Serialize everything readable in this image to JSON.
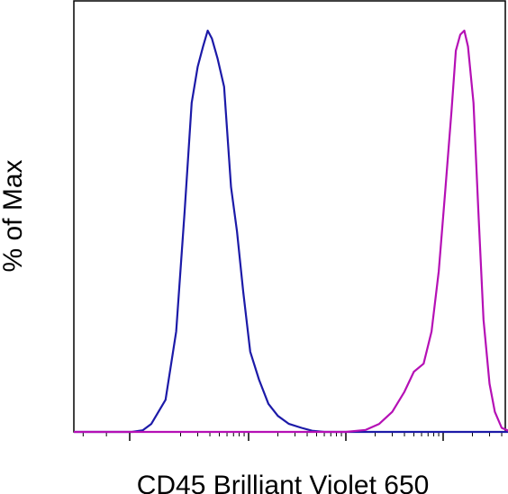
{
  "chart_data": {
    "type": "line",
    "title": "",
    "xlabel": "CD45 Brilliant Violet 650",
    "ylabel": "% of Max",
    "x_scale": "log",
    "x_tick_labels_shown": false,
    "y_tick_labels_shown": false,
    "xlim": [
      -120,
      300000
    ],
    "ylim": [
      0,
      100
    ],
    "grid": false,
    "legend": "none",
    "series": [
      {
        "color": "#1c1aa8",
        "points": [
          [
            -120,
            0
          ],
          [
            1,
            0
          ],
          [
            6,
            0.4
          ],
          [
            10,
            2
          ],
          [
            14,
            8
          ],
          [
            18,
            25
          ],
          [
            22,
            55
          ],
          [
            26,
            82
          ],
          [
            30,
            91
          ],
          [
            34,
            96
          ],
          [
            38,
            100
          ],
          [
            42,
            98
          ],
          [
            48,
            93
          ],
          [
            56,
            86
          ],
          [
            66,
            61
          ],
          [
            76,
            50
          ],
          [
            88,
            35
          ],
          [
            104,
            20
          ],
          [
            128,
            13
          ],
          [
            160,
            7
          ],
          [
            200,
            4
          ],
          [
            260,
            2
          ],
          [
            350,
            1
          ],
          [
            450,
            0.3
          ],
          [
            600,
            0
          ],
          [
            300000,
            0
          ]
        ]
      },
      {
        "color": "#b510b5",
        "points": [
          [
            -120,
            0
          ],
          [
            1000,
            0
          ],
          [
            1600,
            0.5
          ],
          [
            2200,
            2
          ],
          [
            3000,
            5
          ],
          [
            4000,
            10
          ],
          [
            5000,
            15
          ],
          [
            6300,
            17
          ],
          [
            7600,
            25
          ],
          [
            9000,
            40
          ],
          [
            10500,
            60
          ],
          [
            12200,
            80
          ],
          [
            13500,
            95
          ],
          [
            15000,
            99
          ],
          [
            16500,
            100
          ],
          [
            18000,
            96
          ],
          [
            20500,
            82
          ],
          [
            23000,
            55
          ],
          [
            26000,
            28
          ],
          [
            30000,
            12
          ],
          [
            34000,
            5
          ],
          [
            40000,
            1
          ],
          [
            50000,
            0
          ],
          [
            300000,
            0
          ]
        ]
      }
    ]
  }
}
